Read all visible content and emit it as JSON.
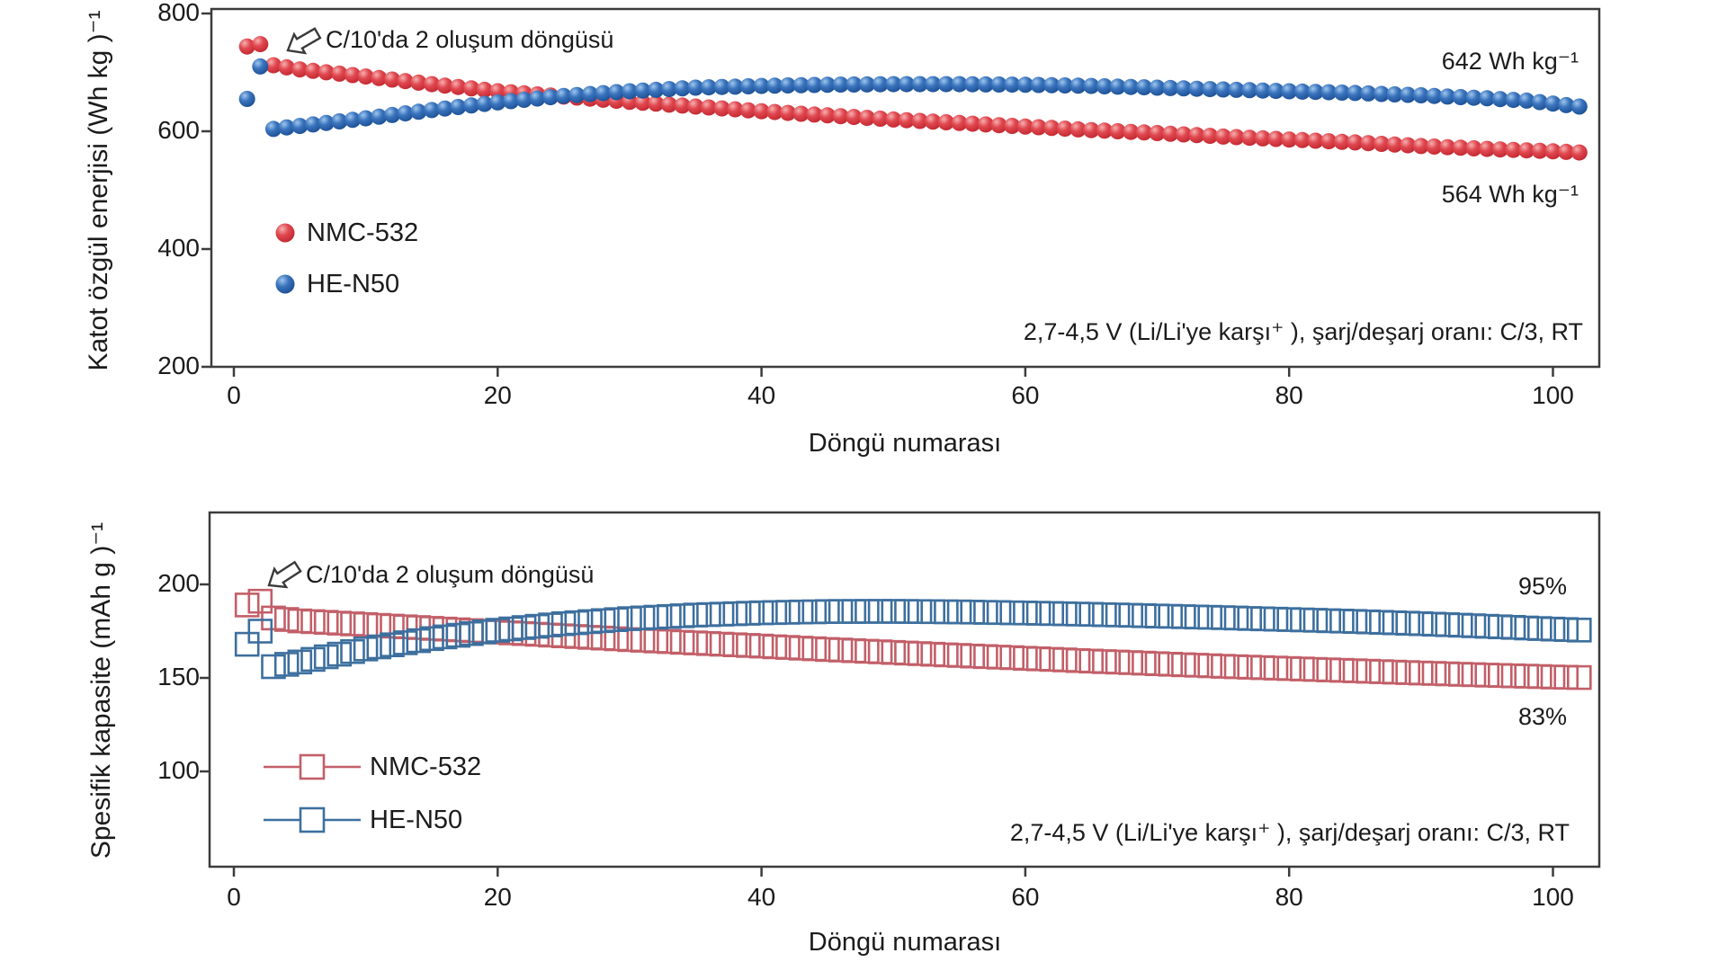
{
  "figure": {
    "background_color": "#ffffff",
    "axis_color": "#3c3c3c",
    "text_color": "#1b1b1b"
  },
  "chart_data": [
    {
      "type": "scatter",
      "panel": "top",
      "title": "",
      "xlabel": "Döngü numarası",
      "ylabel": "Katot özgül enerjisi (Wh kg )⁻¹",
      "xlim": [
        -1.7,
        103.5
      ],
      "ylim": [
        200,
        808
      ],
      "xticks": [
        0,
        20,
        40,
        60,
        80,
        100
      ],
      "yticks": [
        800,
        600,
        400,
        200
      ],
      "grid": false,
      "legend_position": "upper-left-inside",
      "marker": "filled-sphere",
      "x_range_cycles": [
        1,
        102
      ],
      "annotations": {
        "formation": "C/10'da 2 oluşum döngüsü",
        "he_n50_final": "642 Wh kg⁻¹",
        "nmc_final": "564 Wh kg⁻¹",
        "condition": "2,7-4,5 V (Li/Li'ye karşı⁺ ), şarj/deşarj oranı: C/3, RT"
      },
      "series": [
        {
          "name": "NMC-532",
          "color": "#d9373e",
          "keypoints": [
            [
              1,
              744
            ],
            [
              2,
              748
            ],
            [
              3,
              712
            ],
            [
              5,
              705
            ],
            [
              10,
              693
            ],
            [
              15,
              680
            ],
            [
              20,
              668
            ],
            [
              25,
              659
            ],
            [
              30,
              650
            ],
            [
              35,
              642
            ],
            [
              40,
              634
            ],
            [
              45,
              627
            ],
            [
              50,
              620
            ],
            [
              55,
              614
            ],
            [
              60,
              608
            ],
            [
              65,
              602
            ],
            [
              70,
              597
            ],
            [
              75,
              591
            ],
            [
              80,
              586
            ],
            [
              85,
              581
            ],
            [
              90,
              575
            ],
            [
              95,
              570
            ],
            [
              100,
              566
            ],
            [
              102,
              564
            ]
          ]
        },
        {
          "name": "HE-N50",
          "color": "#2a67b2",
          "keypoints": [
            [
              1,
              655
            ],
            [
              2,
              710
            ],
            [
              3,
              604
            ],
            [
              5,
              609
            ],
            [
              10,
              622
            ],
            [
              15,
              636
            ],
            [
              20,
              649
            ],
            [
              25,
              660
            ],
            [
              30,
              668
            ],
            [
              35,
              674
            ],
            [
              40,
              677
            ],
            [
              45,
              679
            ],
            [
              50,
              680
            ],
            [
              55,
              680
            ],
            [
              60,
              679
            ],
            [
              65,
              677
            ],
            [
              70,
              674
            ],
            [
              75,
              671
            ],
            [
              80,
              668
            ],
            [
              85,
              665
            ],
            [
              90,
              661
            ],
            [
              95,
              656
            ],
            [
              98,
              652
            ],
            [
              100,
              647
            ],
            [
              102,
              642
            ]
          ]
        }
      ]
    },
    {
      "type": "scatter",
      "panel": "bottom",
      "title": "",
      "xlabel": "Döngü numarası",
      "ylabel": "Spesifik kapasite (mAh g )⁻¹",
      "xlim": [
        -1.7,
        103.5
      ],
      "ylim": [
        55,
        238
      ],
      "xticks": [
        0,
        20,
        40,
        60,
        80,
        100
      ],
      "yticks": [
        200,
        150,
        100
      ],
      "grid": false,
      "legend_position": "lower-left-inside",
      "marker": "open-square",
      "x_range_cycles": [
        1,
        102
      ],
      "annotations": {
        "formation": "C/10'da 2 oluşum döngüsü",
        "he_n50_retention": "95%",
        "nmc_retention": "83%",
        "condition": "2,7-4,5 V (Li/Li'ye karşı⁺ ), şarj/deşarj oranı: C/3, RT"
      },
      "series": [
        {
          "name": "NMC-532",
          "color": "#c25f68",
          "keypoints": [
            [
              1,
              189
            ],
            [
              2,
              191
            ],
            [
              3,
              182
            ],
            [
              5,
              180.5
            ],
            [
              10,
              178.5
            ],
            [
              15,
              176.5
            ],
            [
              20,
              174.5
            ],
            [
              25,
              172.5
            ],
            [
              30,
              170.5
            ],
            [
              35,
              168.7
            ],
            [
              40,
              167
            ],
            [
              45,
              165.2
            ],
            [
              50,
              163.6
            ],
            [
              55,
              162
            ],
            [
              60,
              160.5
            ],
            [
              65,
              159
            ],
            [
              70,
              157.6
            ],
            [
              75,
              156.2
            ],
            [
              80,
              155
            ],
            [
              85,
              153.8
            ],
            [
              90,
              152.6
            ],
            [
              95,
              151.5
            ],
            [
              100,
              150.5
            ],
            [
              102,
              150.2
            ]
          ]
        },
        {
          "name": "HE-N50",
          "color": "#3d6f9e",
          "keypoints": [
            [
              1,
              168
            ],
            [
              2,
              175
            ],
            [
              3,
              156
            ],
            [
              5,
              158.5
            ],
            [
              10,
              165.5
            ],
            [
              15,
              171
            ],
            [
              20,
              175.5
            ],
            [
              25,
              179
            ],
            [
              30,
              181.7
            ],
            [
              35,
              183.6
            ],
            [
              40,
              184.8
            ],
            [
              45,
              185.5
            ],
            [
              50,
              185.6
            ],
            [
              55,
              185.3
            ],
            [
              60,
              184.7
            ],
            [
              65,
              184
            ],
            [
              70,
              183.1
            ],
            [
              75,
              182.2
            ],
            [
              80,
              181.2
            ],
            [
              85,
              180.2
            ],
            [
              90,
              179
            ],
            [
              95,
              177.6
            ],
            [
              100,
              176.1
            ],
            [
              102,
              175.6
            ]
          ]
        }
      ]
    }
  ]
}
